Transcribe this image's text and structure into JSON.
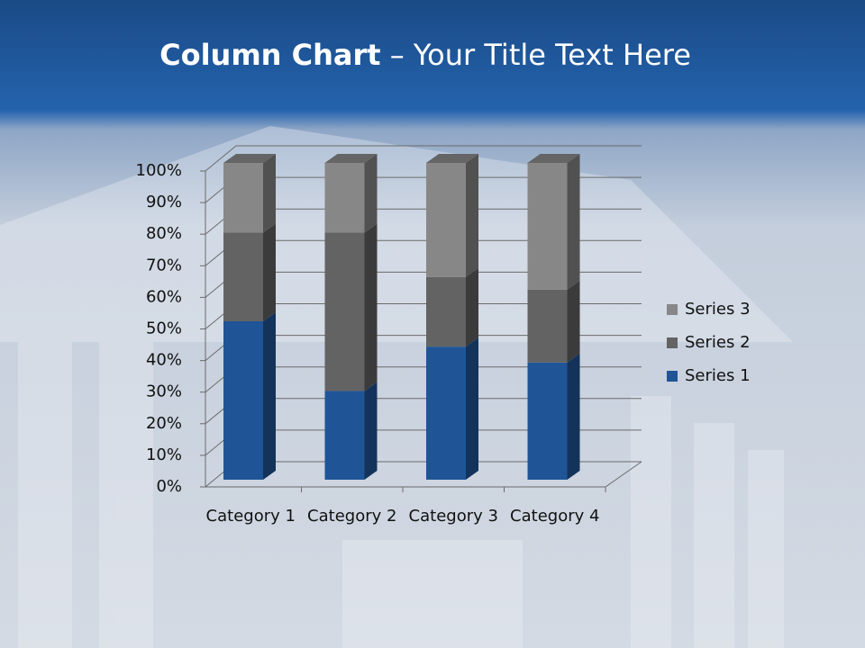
{
  "chart_data": {
    "type": "stacked_column_3d",
    "title": "Column Chart",
    "subtitle": "– Your Title Text Here",
    "categories": [
      "Category 1",
      "Category 2",
      "Category 3",
      "Category 4"
    ],
    "series": [
      {
        "name": "Series 1",
        "color": "#1f5597",
        "values": [
          50,
          28,
          42,
          37
        ]
      },
      {
        "name": "Series 2",
        "color": "#636363",
        "values": [
          28,
          50,
          22,
          23
        ]
      },
      {
        "name": "Series 3",
        "color": "#878787",
        "values": [
          22,
          22,
          36,
          40
        ]
      }
    ],
    "ylim": [
      0,
      100
    ],
    "yticks": [
      {
        "value": 0,
        "label": "0%"
      },
      {
        "value": 10,
        "label": "10%"
      },
      {
        "value": 20,
        "label": "20%"
      },
      {
        "value": 30,
        "label": "30%"
      },
      {
        "value": 40,
        "label": "40%"
      },
      {
        "value": 50,
        "label": "50%"
      },
      {
        "value": 60,
        "label": "60%"
      },
      {
        "value": 70,
        "label": "70%"
      },
      {
        "value": 80,
        "label": "80%"
      },
      {
        "value": 90,
        "label": "90%"
      },
      {
        "value": 100,
        "label": "100%"
      }
    ],
    "grid": true,
    "legend": "right"
  }
}
